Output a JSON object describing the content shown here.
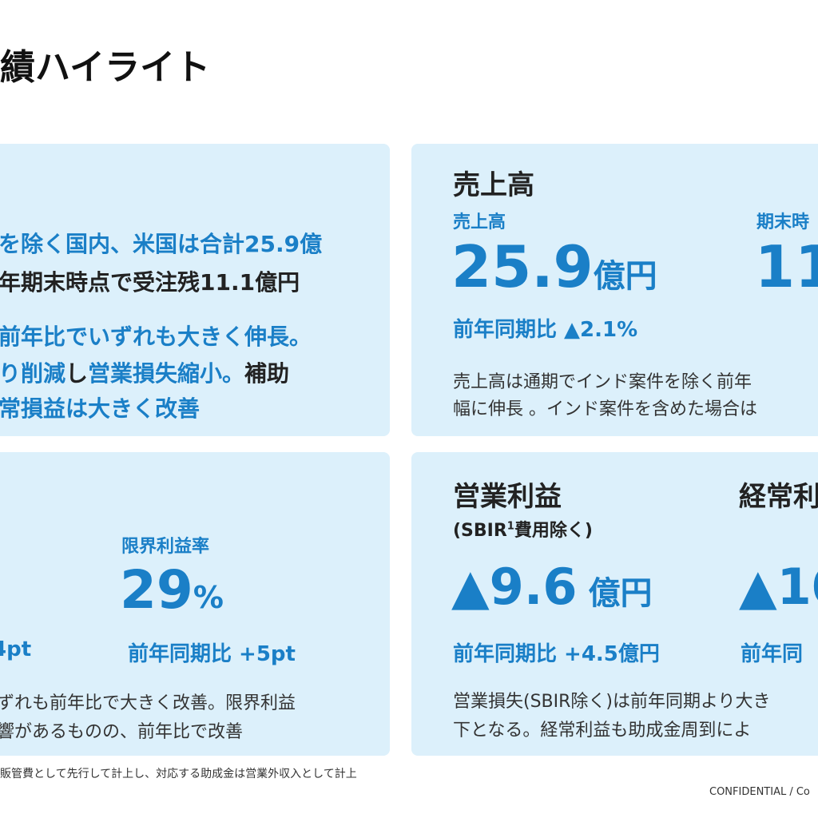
{
  "page": {
    "title": "績ハイライト",
    "footnote": "販管費として先行して計上し、対応する助成金は営業外収入として計上",
    "confidential": "CONFIDENTIAL / Co"
  },
  "summary": {
    "line1": "を除く国内、米国は合計25.9億",
    "line2": "年期末時点で受注残11.1億円",
    "line3": "前年比でいずれも大きく伸長。",
    "line4a": "り削減",
    "line4b": "し",
    "line4c": "営業損失縮小。",
    "line4d": "補助",
    "line5": "常損益は大きく改善"
  },
  "sales": {
    "heading": "売上高",
    "label": "売上高",
    "value": "25.9",
    "unit": "億円",
    "yoy": "前年同期比 ▲2.1%",
    "label2": "期末時",
    "value2": "11",
    "desc1": "売上高は通期でインド案件を除く前年",
    "desc2": "幅に伸長 。インド案件を含めた場合は"
  },
  "margin": {
    "left_yoy": "4pt",
    "label": "限界利益率",
    "value": "29",
    "unit": "%",
    "yoy": "前年同期比  +5pt",
    "desc1": "ずれも前年比で大きく改善。限界利益",
    "desc2": "響があるものの、前年比で改善"
  },
  "op": {
    "heading": "営業利益",
    "sub": "(SBIR",
    "sup": "1",
    "sub2": "費用除く)",
    "value": "▲9.6",
    "unit": "億円",
    "yoy": "前年同期比  +4.5億円",
    "heading2": "経常利",
    "value2": "▲10",
    "yoy2": "前年同",
    "desc1": "営業損失(SBIR除く)は前年同期より大き",
    "desc2": "下となる。経常利益も助成金周到によ"
  }
}
